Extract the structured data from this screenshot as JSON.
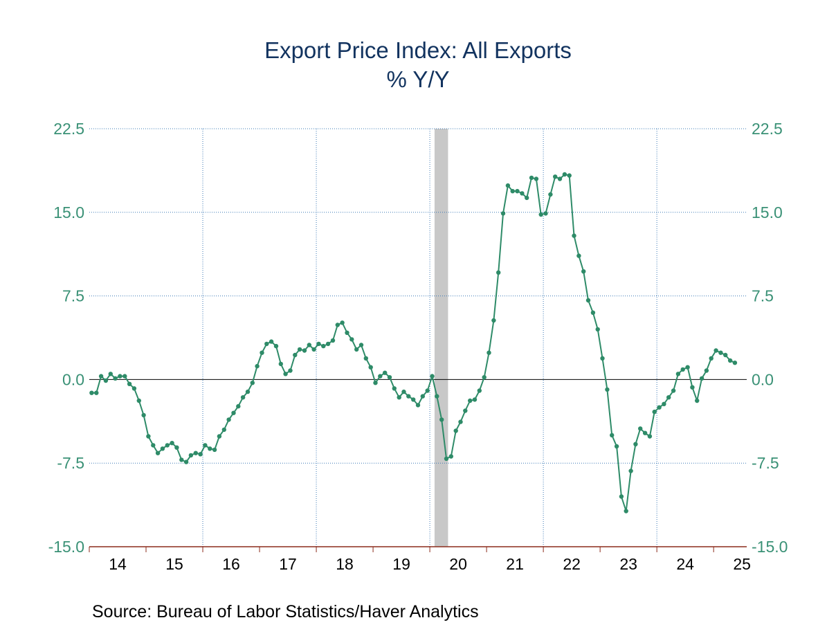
{
  "chart_data": {
    "type": "line",
    "title": "Export Price Index: All Exports",
    "subtitle": "% Y/Y",
    "source": "Source:  Bureau of Labor Statistics/Haver Analytics",
    "y_ticks": [
      "22.5",
      "15.0",
      "7.5",
      "0.0",
      "-7.5",
      "-15.0"
    ],
    "y_tick_values": [
      22.5,
      15.0,
      7.5,
      0.0,
      -7.5,
      -15.0
    ],
    "ylim": [
      -15.0,
      22.5
    ],
    "x_tick_labels": [
      "14",
      "15",
      "16",
      "17",
      "18",
      "19",
      "20",
      "21",
      "22",
      "23",
      "24",
      "25"
    ],
    "x_start": "2014-01",
    "recession": {
      "start": "2020-02",
      "end": "2020-04"
    },
    "grid": true,
    "colors": {
      "line": "#2e8b68",
      "title": "#12335f",
      "grid": "#3a78b5",
      "recession": "#c8c8c8",
      "axis_text": "#3a9176",
      "zero_line": "#000000",
      "x_axis": "#8b2a1a"
    },
    "series": [
      {
        "values": [
          -1.2,
          -1.2,
          0.3,
          -0.1,
          0.5,
          0.1,
          0.3,
          0.3,
          -0.4,
          -0.8,
          -1.9,
          -3.2,
          -5.1,
          -5.9,
          -6.6,
          -6.2,
          -5.9,
          -5.7,
          -6.1,
          -7.2,
          -7.4,
          -6.8,
          -6.6,
          -6.7,
          -5.9,
          -6.2,
          -6.3,
          -5.1,
          -4.5,
          -3.6,
          -3.0,
          -2.4,
          -1.6,
          -1.1,
          -0.3,
          1.2,
          2.4,
          3.2,
          3.4,
          3.0,
          1.4,
          0.5,
          0.8,
          2.2,
          2.7,
          2.6,
          3.1,
          2.7,
          3.2,
          3.0,
          3.2,
          3.5,
          4.9,
          5.1,
          4.2,
          3.6,
          2.7,
          3.1,
          1.9,
          1.1,
          -0.3,
          0.3,
          0.6,
          0.2,
          -0.8,
          -1.6,
          -1.1,
          -1.5,
          -1.8,
          -2.3,
          -1.5,
          -1.0,
          0.3,
          -1.5,
          -3.6,
          -7.1,
          -6.9,
          -4.6,
          -3.8,
          -2.8,
          -1.9,
          -1.8,
          -1.0,
          0.2,
          2.4,
          5.3,
          9.6,
          14.9,
          17.4,
          16.9,
          16.9,
          16.7,
          16.3,
          18.1,
          18.0,
          14.8,
          14.9,
          16.6,
          18.2,
          18.0,
          18.4,
          18.3,
          12.9,
          11.1,
          9.7,
          7.1,
          6.0,
          4.5,
          1.9,
          -0.9,
          -5.0,
          -6.0,
          -10.5,
          -11.8,
          -8.2,
          -5.8,
          -4.4,
          -4.8,
          -5.1,
          -2.9,
          -2.5,
          -2.2,
          -1.6,
          -1.0,
          0.5,
          0.9,
          1.1,
          -0.7,
          -1.9,
          0.1,
          0.8,
          1.9,
          2.6,
          2.4,
          2.2,
          1.7,
          1.5
        ]
      }
    ]
  }
}
